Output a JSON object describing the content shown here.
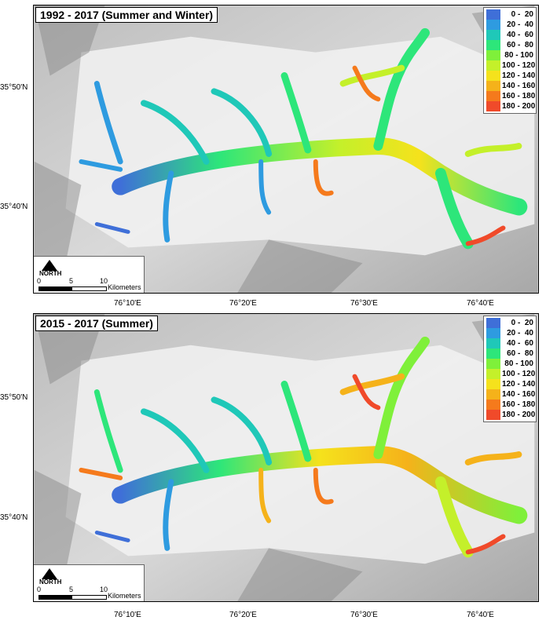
{
  "panels": [
    {
      "title": "1992 - 2017 (Summer and Winter)",
      "legend": [
        "0 -  20",
        "20 -  40",
        "40 -  60",
        "60 -  80",
        "80 - 100",
        "100 - 120",
        "120 - 140",
        "140 - 160",
        "160 - 180",
        "180 - 200"
      ],
      "lat_labels": [
        "35°50'N",
        "35°40'N"
      ],
      "lon_labels": [
        "76°10'E",
        "76°20'E",
        "76°30'E",
        "76°40'E"
      ]
    },
    {
      "title": "2015 - 2017 (Summer)",
      "legend": [
        "0 -  20",
        "20 -  40",
        "40 -  60",
        "60 -  80",
        "80 - 100",
        "100 - 120",
        "120 - 140",
        "140 - 160",
        "160 - 180",
        "180 - 200"
      ],
      "lat_labels": [
        "35°50'N",
        "35°40'N"
      ],
      "lon_labels": [
        "76°10'E",
        "76°20'E",
        "76°30'E",
        "76°40'E"
      ]
    }
  ],
  "legend_colors": [
    "#3f6fd8",
    "#2e9be0",
    "#1fc8b8",
    "#2de67a",
    "#7ff03a",
    "#c4f02a",
    "#f5e21c",
    "#f5b21a",
    "#f57a1c",
    "#f04a2a"
  ],
  "scalebar": {
    "north": "NORTH",
    "ticks": [
      "0",
      "5",
      "10"
    ],
    "unit": "Kilometers"
  }
}
